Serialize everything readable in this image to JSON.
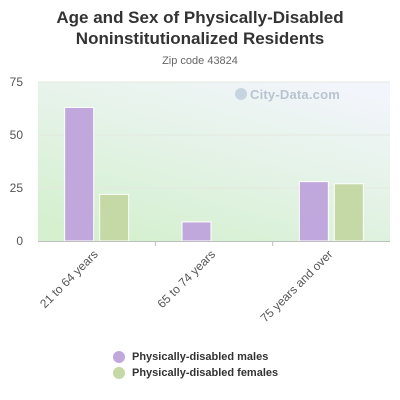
{
  "title_line1": "Age and Sex of Physically-Disabled",
  "title_line2": "Noninstitutionalized Residents",
  "subtitle": "Zip code 43824",
  "watermark": "City-Data.com",
  "colors": {
    "males": "#c0a8dc",
    "females": "#c4d9a6",
    "plot_bg_top": "#f2f5fb",
    "plot_bg_bottom": "#d4f0cf"
  },
  "chart_data": {
    "type": "bar",
    "title": "Age and Sex of Physically-Disabled Noninstitutionalized Residents",
    "subtitle": "Zip code 43824",
    "categories": [
      "21 to 64 years",
      "65 to 74 years",
      "75 years and over"
    ],
    "series": [
      {
        "name": "Physically-disabled males",
        "values": [
          63,
          9,
          28
        ]
      },
      {
        "name": "Physically-disabled females",
        "values": [
          22,
          0,
          27
        ]
      }
    ],
    "ylim": [
      0,
      75
    ],
    "yticks": [
      0,
      25,
      50,
      75
    ],
    "grid": true,
    "legend": "bottom"
  }
}
